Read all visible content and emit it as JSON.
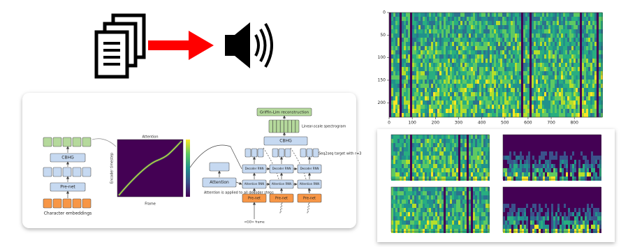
{
  "encoder": {
    "cbhg": "CBHG",
    "prenet": "Pre-net",
    "embeddings": "Character embeddings"
  },
  "attention_plot": {
    "title": "Attention",
    "x_label": "Frame",
    "y_label": "Encoder timestep"
  },
  "decoder": {
    "griffin_lim": "Griffin-Lim reconstruction",
    "spectrogram_label": "Linear-scale spectrogram",
    "cbhg": "CBHG",
    "target_label": "Seq2seq target with r=3",
    "decoder_rnn": [
      "Decoder RNN",
      "Decoder RNN",
      "Decoder RNN"
    ],
    "attention_rnn": [
      "Attention RNN",
      "Attention RNN",
      "Attention RNN"
    ],
    "prenet": [
      "Pre-net",
      "Pre-net",
      "Pre-net"
    ],
    "attention": "Attention",
    "attention_note": "Attention is applied to all decoder steps",
    "go_frame": "<GO> frame"
  },
  "spectrogram": {
    "xlim": [
      0,
      920
    ],
    "ylim": [
      0,
      232
    ],
    "xticks": [
      0,
      100,
      200,
      300,
      400,
      500,
      600,
      700,
      800
    ],
    "yticks": [
      0,
      50,
      100,
      150,
      200
    ]
  }
}
